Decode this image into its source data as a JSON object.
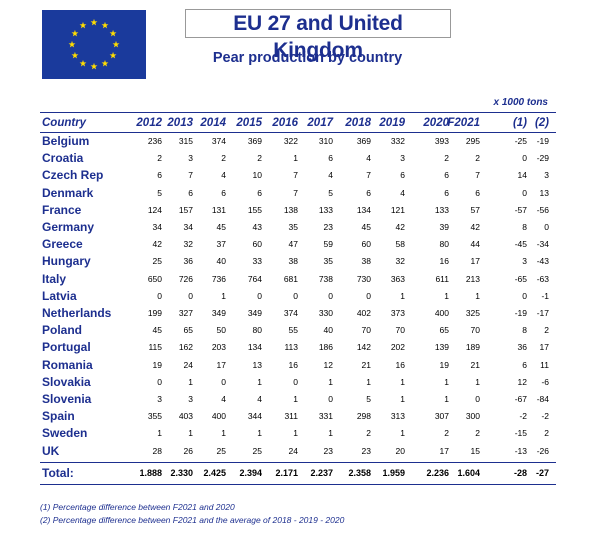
{
  "header": {
    "title": "EU 27 and United Kingdom",
    "subtitle": "Pear production by country",
    "units": "x 1000 tons"
  },
  "table": {
    "country_header": "Country",
    "columns": [
      "2012",
      "2013",
      "2014",
      "2015",
      "2016",
      "2017",
      "2018",
      "2019",
      "2020",
      "F2021",
      "(1)",
      "(2)"
    ],
    "rows": [
      {
        "country": "Belgium",
        "values": [
          "236",
          "315",
          "374",
          "369",
          "322",
          "310",
          "369",
          "332",
          "393",
          "295",
          "-25",
          "-19"
        ]
      },
      {
        "country": "Croatia",
        "values": [
          "2",
          "3",
          "2",
          "2",
          "1",
          "6",
          "4",
          "3",
          "2",
          "2",
          "0",
          "-29"
        ]
      },
      {
        "country": "Czech Rep",
        "values": [
          "6",
          "7",
          "4",
          "10",
          "7",
          "4",
          "7",
          "6",
          "6",
          "7",
          "14",
          "3"
        ]
      },
      {
        "country": "Denmark",
        "values": [
          "5",
          "6",
          "6",
          "6",
          "7",
          "5",
          "6",
          "4",
          "6",
          "6",
          "0",
          "13"
        ]
      },
      {
        "country": "France",
        "values": [
          "124",
          "157",
          "131",
          "155",
          "138",
          "133",
          "134",
          "121",
          "133",
          "57",
          "-57",
          "-56"
        ]
      },
      {
        "country": "Germany",
        "values": [
          "34",
          "34",
          "45",
          "43",
          "35",
          "23",
          "45",
          "42",
          "39",
          "42",
          "8",
          "0"
        ]
      },
      {
        "country": "Greece",
        "values": [
          "42",
          "32",
          "37",
          "60",
          "47",
          "59",
          "60",
          "58",
          "80",
          "44",
          "-45",
          "-34"
        ]
      },
      {
        "country": "Hungary",
        "values": [
          "25",
          "36",
          "40",
          "33",
          "38",
          "35",
          "38",
          "32",
          "16",
          "17",
          "3",
          "-43"
        ]
      },
      {
        "country": "Italy",
        "values": [
          "650",
          "726",
          "736",
          "764",
          "681",
          "738",
          "730",
          "363",
          "611",
          "213",
          "-65",
          "-63"
        ]
      },
      {
        "country": "Latvia",
        "values": [
          "0",
          "0",
          "1",
          "0",
          "0",
          "0",
          "0",
          "1",
          "1",
          "1",
          "0",
          "-1"
        ]
      },
      {
        "country": "Netherlands",
        "values": [
          "199",
          "327",
          "349",
          "349",
          "374",
          "330",
          "402",
          "373",
          "400",
          "325",
          "-19",
          "-17"
        ]
      },
      {
        "country": "Poland",
        "values": [
          "45",
          "65",
          "50",
          "80",
          "55",
          "40",
          "70",
          "70",
          "65",
          "70",
          "8",
          "2"
        ]
      },
      {
        "country": "Portugal",
        "values": [
          "115",
          "162",
          "203",
          "134",
          "113",
          "186",
          "142",
          "202",
          "139",
          "189",
          "36",
          "17"
        ]
      },
      {
        "country": "Romania",
        "values": [
          "19",
          "24",
          "17",
          "13",
          "16",
          "12",
          "21",
          "16",
          "19",
          "21",
          "6",
          "11"
        ]
      },
      {
        "country": "Slovakia",
        "values": [
          "0",
          "1",
          "0",
          "1",
          "0",
          "1",
          "1",
          "1",
          "1",
          "1",
          "12",
          "-6"
        ]
      },
      {
        "country": "Slovenia",
        "values": [
          "3",
          "3",
          "4",
          "4",
          "1",
          "0",
          "5",
          "1",
          "1",
          "0",
          "-67",
          "-84"
        ]
      },
      {
        "country": "Spain",
        "values": [
          "355",
          "403",
          "400",
          "344",
          "311",
          "331",
          "298",
          "313",
          "307",
          "300",
          "-2",
          "-2"
        ]
      },
      {
        "country": "Sweden",
        "values": [
          "1",
          "1",
          "1",
          "1",
          "1",
          "1",
          "2",
          "1",
          "2",
          "2",
          "-15",
          "2"
        ]
      },
      {
        "country": "UK",
        "values": [
          "28",
          "26",
          "25",
          "25",
          "24",
          "23",
          "23",
          "20",
          "17",
          "15",
          "-13",
          "-26"
        ]
      }
    ],
    "total": {
      "label": "Total:",
      "values": [
        "1.888",
        "2.330",
        "2.425",
        "2.394",
        "2.171",
        "2.237",
        "2.358",
        "1.959",
        "2.236",
        "1.604",
        "-28",
        "-27"
      ]
    }
  },
  "footnotes": [
    "(1) Percentage difference between F2021 and 2020",
    "(2) Percentage difference between F2021 and the average of 2018 - 2019 - 2020"
  ],
  "colors": {
    "accent": "#1d2f8f",
    "flag_blue": "#1a3a9c",
    "flag_star": "#ffdd00"
  },
  "icons": {
    "flag": "eu-flag-icon"
  }
}
